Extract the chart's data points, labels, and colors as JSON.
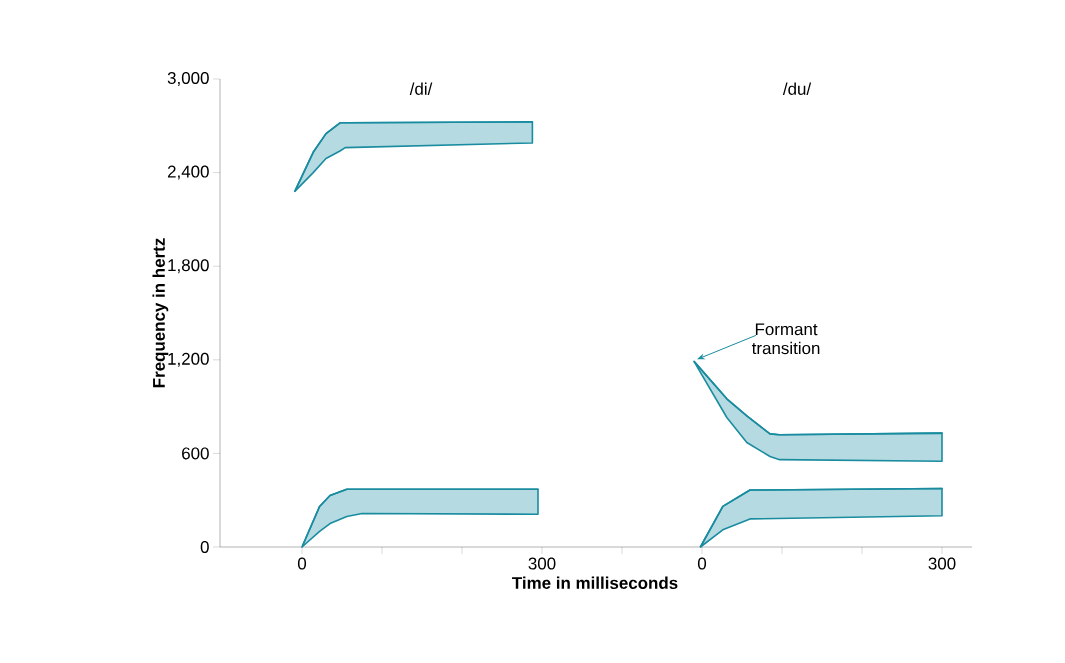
{
  "chart_data": [
    {
      "type": "line",
      "title": "/di/",
      "xlabel": "Time in milliseconds",
      "ylabel": "Frequency in hertz",
      "xlim": [
        -102.5,
        400
      ],
      "ylim": [
        0,
        3000
      ],
      "xticks": [
        0,
        {
          "value": 100,
          "label": null
        },
        {
          "value": 200,
          "label": null
        },
        300
      ],
      "yticks": [
        0,
        600,
        {
          "value": 1200,
          "label": "1,200"
        },
        {
          "value": 1800,
          "label": "1,800"
        },
        {
          "value": 2400,
          "label": "2,400"
        },
        {
          "value": 3000,
          "label": "3,000"
        }
      ],
      "series": [
        {
          "color": "#1a8ca0",
          "x": [
            -9,
            14,
            30,
            48,
            54,
            288
          ],
          "values": [
            2280,
            2530,
            2650,
            2720,
            2720,
            2725
          ],
          "lower": [
            2280,
            2400,
            2490,
            2540,
            2560,
            2590
          ],
          "upper": [
            2280,
            2530,
            2650,
            2720,
            2720,
            2725
          ]
        },
        {
          "color": "#1a8ca0",
          "x": [
            0,
            22,
            35,
            56,
            75,
            295
          ],
          "values": [
            0,
            260,
            330,
            370,
            370,
            370
          ],
          "lower": [
            0,
            100,
            150,
            195,
            215,
            210
          ],
          "upper": [
            0,
            260,
            330,
            370,
            370,
            370
          ]
        }
      ]
    },
    {
      "type": "line",
      "title": "/du/",
      "tick_labels": "x",
      "xlim": [
        -100,
        337.5
      ],
      "ylim": [
        0,
        3000
      ],
      "xticks": [
        {
          "value": -100,
          "label": null
        },
        0,
        {
          "value": 100,
          "label": null
        },
        {
          "value": 200,
          "label": null
        },
        300
      ],
      "series": [
        {
          "color": "#1a8ca0",
          "x": [
            -10,
            31,
            56,
            85,
            97,
            300
          ],
          "values": [
            1190,
            950,
            840,
            725,
            720,
            730
          ],
          "lower": [
            1190,
            830,
            670,
            580,
            560,
            550
          ],
          "upper": [
            1190,
            950,
            840,
            725,
            720,
            730
          ]
        },
        {
          "color": "#1a8ca0",
          "x": [
            -2,
            26,
            60,
            300
          ],
          "values": [
            0,
            260,
            365,
            375
          ],
          "lower": [
            0,
            110,
            180,
            200
          ],
          "upper": [
            0,
            260,
            365,
            375
          ]
        }
      ],
      "annotations": [
        "Formant transition"
      ]
    }
  ]
}
